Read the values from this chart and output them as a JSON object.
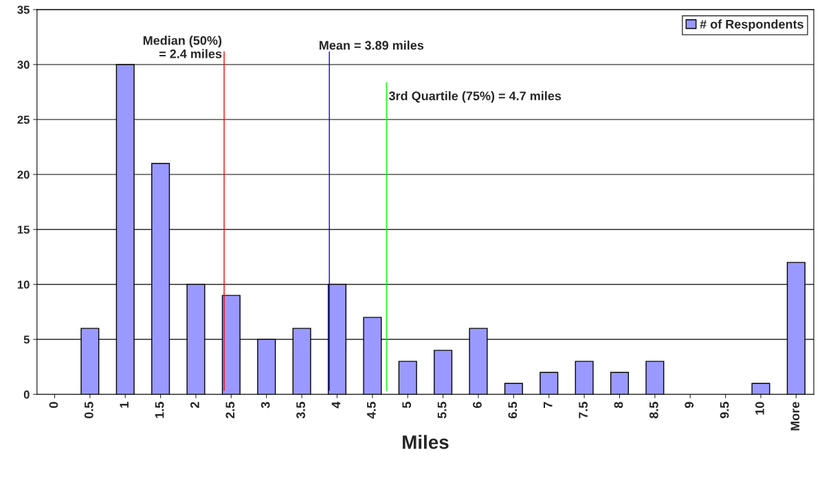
{
  "chart_data": {
    "type": "bar",
    "xlabel": "Miles",
    "x": [
      0,
      0.5,
      1,
      1.5,
      2,
      2.5,
      3,
      3.5,
      4,
      4.5,
      5,
      5.5,
      6,
      6.5,
      7,
      7.5,
      8,
      8.5,
      9,
      9.5,
      10,
      10.5
    ],
    "xlim": [
      -0.25,
      10.75
    ],
    "xticks": [
      0,
      0.5,
      1,
      1.5,
      2,
      2.5,
      3,
      3.5,
      4,
      4.5,
      5,
      5.5,
      6,
      6.5,
      7,
      7.5,
      8,
      8.5,
      9,
      9.5,
      10,
      {
        "value": 10.5,
        "label": "More"
      }
    ],
    "series": [
      {
        "name": "# of Respondents",
        "color": "#9999ff",
        "values": [
          0,
          6,
          30,
          21,
          10,
          9,
          5,
          6,
          10,
          7,
          3,
          4,
          6,
          1,
          2,
          3,
          2,
          3,
          0,
          0,
          1,
          12
        ]
      }
    ],
    "ylim": [
      0,
      35
    ],
    "yticks": [
      0,
      5,
      10,
      15,
      20,
      25,
      30,
      35
    ],
    "grid": "y",
    "legend": "top right",
    "ref_lines": [
      {
        "axis": "x",
        "value": 2.4,
        "label": "Median (50%)\n= 2.4 miles",
        "color": "#ff0000"
      },
      {
        "axis": "x",
        "value": 3.89,
        "label": "Mean = 3.89 miles",
        "color": "#0000ff"
      },
      {
        "axis": "x",
        "value": 4.7,
        "label": "3rd Quartile (75%) = 4.7 miles",
        "color": "#00ff00"
      }
    ]
  }
}
